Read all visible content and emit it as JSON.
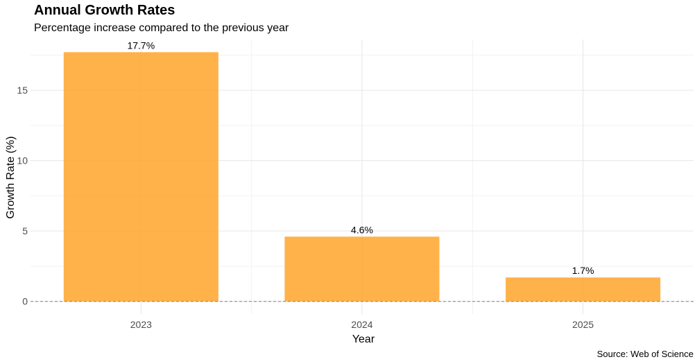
{
  "chart_data": {
    "type": "bar",
    "title": "Annual Growth Rates",
    "subtitle": "Percentage increase compared to the previous year",
    "caption": "Source: Web of Science",
    "xlabel": "Year",
    "ylabel": "Growth Rate (%)",
    "categories": [
      "2023",
      "2024",
      "2025"
    ],
    "values": [
      17.7,
      4.6,
      1.7
    ],
    "value_labels": [
      "17.7%",
      "4.6%",
      "1.7%"
    ],
    "ylim": [
      -0.9,
      18.6
    ],
    "yticks": [
      0,
      5,
      10,
      15
    ],
    "ytick_labels": [
      "0",
      "5",
      "10",
      "15"
    ],
    "bar_color": "#FFA529",
    "reference_line": {
      "y": 0,
      "style": "dashed",
      "color": "#808080"
    },
    "grid": true,
    "legend": "none"
  }
}
